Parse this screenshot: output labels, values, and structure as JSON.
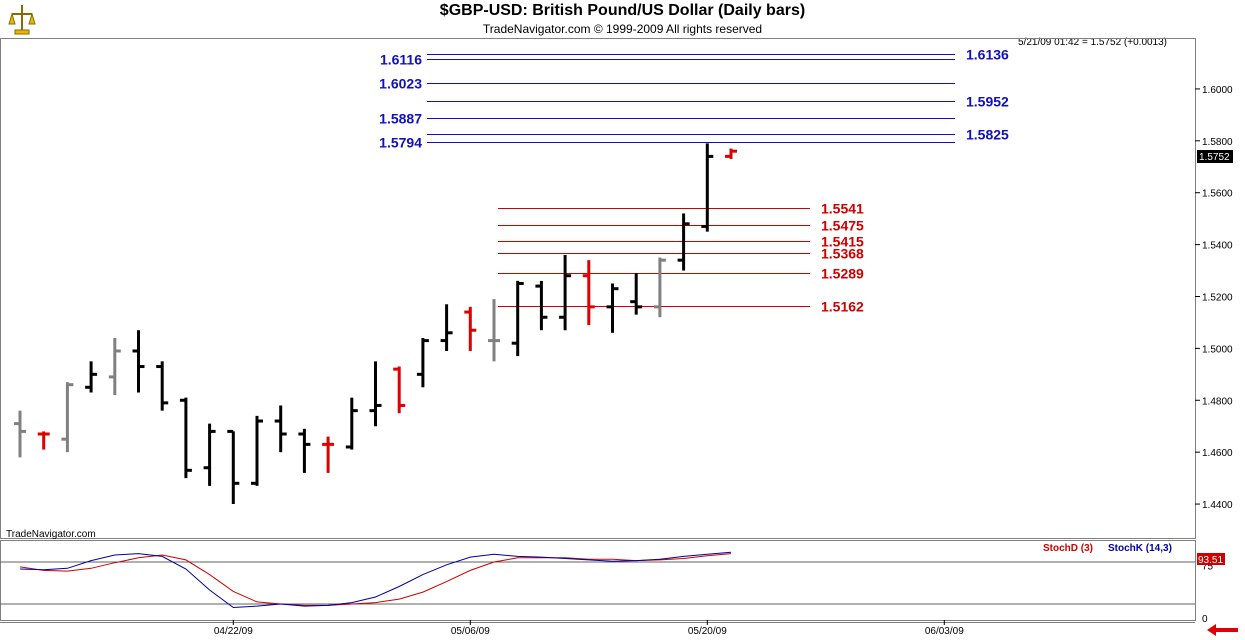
{
  "header": {
    "title": "$GBP-USD:  British Pound/US Dollar  (Daily bars)",
    "subtitle": "TradeNavigator.com © 1999-2009 All rights reserved",
    "quote": "5/21/09 01:42 = 1.5752 (+0.0013)",
    "watermark": "TradeNavigator.com",
    "last_price_label": "1.5752"
  },
  "colors": {
    "up": "#000000",
    "neutral": "#808080",
    "down": "#e00000",
    "fib_blue": "#1010c0",
    "fib_red": "#d00000",
    "stoch_d": "#d00000",
    "stoch_k": "#0000a0"
  },
  "chart_data": [
    {
      "type": "ohlc",
      "title": "$GBP-USD:  British Pound/US Dollar  (Daily bars)",
      "ylim": [
        1.43,
        1.615
      ],
      "y_ticks": [
        "1.4400",
        "1.4600",
        "1.4800",
        "1.5000",
        "1.5200",
        "1.5400",
        "1.5600",
        "1.5800",
        "1.6000"
      ],
      "x_ticks": [
        {
          "label": "04/22/09",
          "index": 9
        },
        {
          "label": "05/06/09",
          "index": 19
        },
        {
          "label": "05/20/09",
          "index": 29
        },
        {
          "label": "06/03/09",
          "index": 39
        }
      ],
      "bars": [
        {
          "o": 1.471,
          "h": 1.476,
          "l": 1.458,
          "c": 1.468,
          "color": "neutral"
        },
        {
          "o": 1.467,
          "h": 1.468,
          "l": 1.461,
          "c": 1.467,
          "color": "down"
        },
        {
          "o": 1.465,
          "h": 1.487,
          "l": 1.46,
          "c": 1.486,
          "color": "neutral"
        },
        {
          "o": 1.485,
          "h": 1.495,
          "l": 1.483,
          "c": 1.49,
          "color": "up"
        },
        {
          "o": 1.489,
          "h": 1.504,
          "l": 1.482,
          "c": 1.499,
          "color": "neutral"
        },
        {
          "o": 1.499,
          "h": 1.507,
          "l": 1.483,
          "c": 1.493,
          "color": "up"
        },
        {
          "o": 1.493,
          "h": 1.495,
          "l": 1.476,
          "c": 1.479,
          "color": "up"
        },
        {
          "o": 1.48,
          "h": 1.481,
          "l": 1.45,
          "c": 1.453,
          "color": "up"
        },
        {
          "o": 1.454,
          "h": 1.471,
          "l": 1.447,
          "c": 1.468,
          "color": "up"
        },
        {
          "o": 1.468,
          "h": 1.468,
          "l": 1.44,
          "c": 1.448,
          "color": "up"
        },
        {
          "o": 1.448,
          "h": 1.474,
          "l": 1.447,
          "c": 1.472,
          "color": "up"
        },
        {
          "o": 1.472,
          "h": 1.478,
          "l": 1.46,
          "c": 1.467,
          "color": "up"
        },
        {
          "o": 1.467,
          "h": 1.469,
          "l": 1.452,
          "c": 1.463,
          "color": "up"
        },
        {
          "o": 1.463,
          "h": 1.466,
          "l": 1.452,
          "c": 1.463,
          "color": "down"
        },
        {
          "o": 1.462,
          "h": 1.481,
          "l": 1.461,
          "c": 1.476,
          "color": "up"
        },
        {
          "o": 1.476,
          "h": 1.495,
          "l": 1.47,
          "c": 1.478,
          "color": "up"
        },
        {
          "o": 1.492,
          "h": 1.493,
          "l": 1.475,
          "c": 1.478,
          "color": "down"
        },
        {
          "o": 1.49,
          "h": 1.504,
          "l": 1.485,
          "c": 1.503,
          "color": "up"
        },
        {
          "o": 1.503,
          "h": 1.517,
          "l": 1.499,
          "c": 1.506,
          "color": "up"
        },
        {
          "o": 1.514,
          "h": 1.516,
          "l": 1.499,
          "c": 1.507,
          "color": "down"
        },
        {
          "o": 1.503,
          "h": 1.519,
          "l": 1.495,
          "c": 1.503,
          "color": "neutral"
        },
        {
          "o": 1.502,
          "h": 1.526,
          "l": 1.497,
          "c": 1.525,
          "color": "up"
        },
        {
          "o": 1.524,
          "h": 1.526,
          "l": 1.507,
          "c": 1.512,
          "color": "up"
        },
        {
          "o": 1.512,
          "h": 1.536,
          "l": 1.507,
          "c": 1.528,
          "color": "up"
        },
        {
          "o": 1.528,
          "h": 1.534,
          "l": 1.509,
          "c": 1.516,
          "color": "down"
        },
        {
          "o": 1.516,
          "h": 1.525,
          "l": 1.506,
          "c": 1.523,
          "color": "up"
        },
        {
          "o": 1.518,
          "h": 1.529,
          "l": 1.513,
          "c": 1.516,
          "color": "up"
        },
        {
          "o": 1.516,
          "h": 1.535,
          "l": 1.512,
          "c": 1.534,
          "color": "neutral"
        },
        {
          "o": 1.534,
          "h": 1.552,
          "l": 1.53,
          "c": 1.548,
          "color": "up"
        },
        {
          "o": 1.547,
          "h": 1.579,
          "l": 1.545,
          "c": 1.574,
          "color": "up"
        },
        {
          "o": 1.574,
          "h": 1.577,
          "l": 1.573,
          "c": 1.576,
          "color": "down"
        }
      ],
      "fib_levels": [
        {
          "value": 1.6136,
          "label": "1.6136",
          "side": "right",
          "color": "fib_blue"
        },
        {
          "value": 1.6116,
          "label": "1.6116",
          "side": "left",
          "color": "fib_blue"
        },
        {
          "value": 1.6023,
          "label": "1.6023",
          "side": "left",
          "color": "fib_blue"
        },
        {
          "value": 1.5952,
          "label": "1.5952",
          "side": "right",
          "color": "fib_blue"
        },
        {
          "value": 1.5887,
          "label": "1.5887",
          "side": "left",
          "color": "fib_blue"
        },
        {
          "value": 1.5825,
          "label": "1.5825",
          "side": "right",
          "color": "fib_blue"
        },
        {
          "value": 1.5794,
          "label": "1.5794",
          "side": "left",
          "color": "fib_blue"
        },
        {
          "value": 1.5541,
          "label": "1.5541",
          "side": "right",
          "color": "fib_red"
        },
        {
          "value": 1.5475,
          "label": "1.5475",
          "side": "right",
          "color": "fib_red"
        },
        {
          "value": 1.5415,
          "label": "1.5415",
          "side": "right",
          "color": "fib_red"
        },
        {
          "value": 1.5368,
          "label": "1.5368",
          "side": "right",
          "color": "fib_red"
        },
        {
          "value": 1.5289,
          "label": "1.5289",
          "side": "right",
          "color": "fib_red"
        },
        {
          "value": 1.5162,
          "label": "1.5162",
          "side": "right",
          "color": "fib_red"
        }
      ]
    },
    {
      "type": "line",
      "ylim": [
        0,
        100
      ],
      "y_ticks": [
        "75",
        "0"
      ],
      "reference_lines": [
        80,
        20
      ],
      "last_value_label": "93.51",
      "series": [
        {
          "name": "StochD (3)",
          "color": "stoch_d",
          "values": [
            73,
            68,
            67,
            71,
            79,
            86,
            90,
            83,
            62,
            38,
            23,
            20,
            18,
            18,
            20,
            22,
            27,
            37,
            52,
            68,
            80,
            86,
            86,
            86,
            84,
            84,
            82,
            83,
            85,
            89,
            92
          ]
        },
        {
          "name": "StochK (14,3)",
          "color": "stoch_k",
          "values": [
            70,
            69,
            71,
            82,
            90,
            92,
            88,
            70,
            40,
            15,
            17,
            20,
            17,
            18,
            22,
            30,
            45,
            62,
            76,
            87,
            91,
            88,
            87,
            85,
            83,
            81,
            82,
            84,
            88,
            91,
            94
          ]
        }
      ]
    }
  ]
}
